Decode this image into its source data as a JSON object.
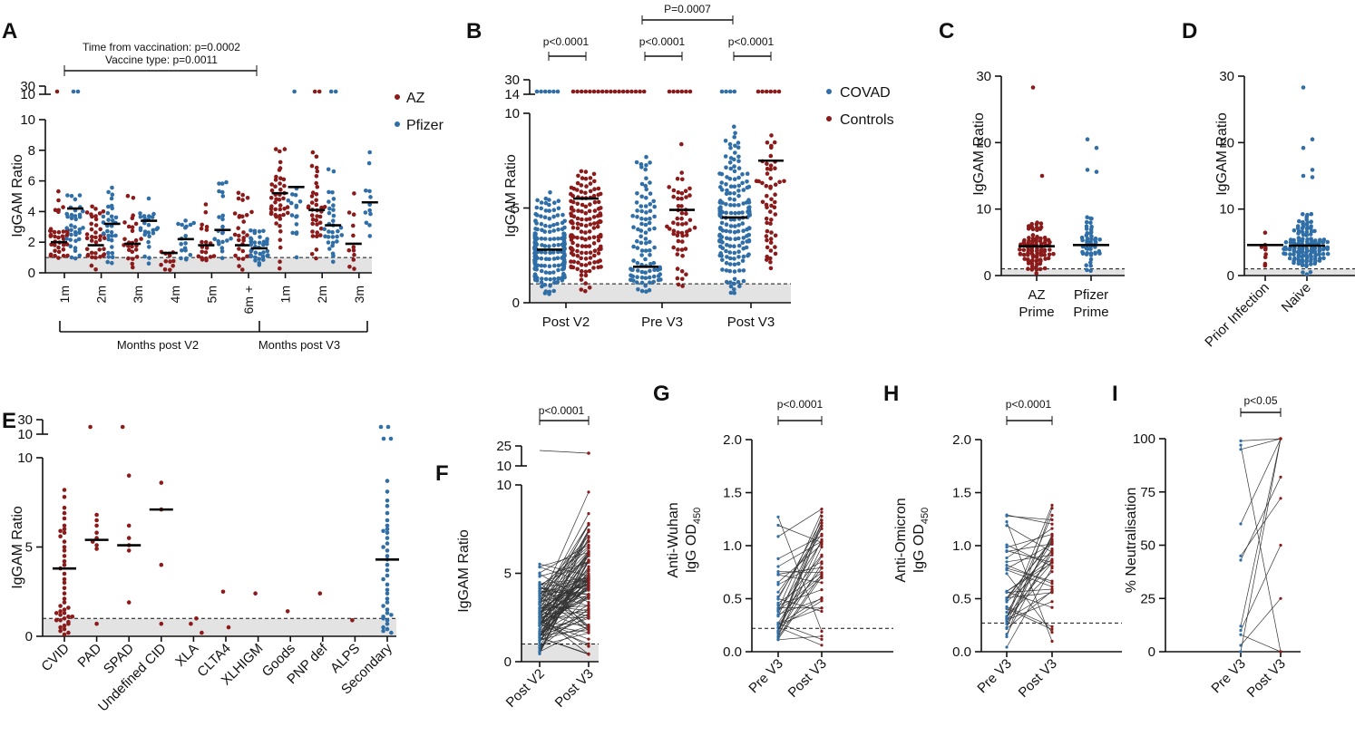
{
  "colors": {
    "az": "#8b1a1a",
    "pfizer": "#2f6ea6",
    "covad": "#2f6ea6",
    "controls": "#8b1a1a",
    "shade": "#e3e3e3",
    "axis": "#111111"
  },
  "chart_data": [
    {
      "panel": "A",
      "type": "scatter",
      "ylabel": "IgGAM Ratio",
      "yticks": [
        "0",
        "2",
        "4",
        "6",
        "8",
        "10"
      ],
      "ybreak_ticks": [
        "10",
        "30"
      ],
      "ylim": [
        0,
        10
      ],
      "cutoff": 1.0,
      "categories": [
        "1m",
        "2m",
        "3m",
        "4m",
        "5m",
        "6m +",
        "1m",
        "2m",
        "3m"
      ],
      "group_labels": [
        "Months post V2",
        "Months post V3"
      ],
      "legend": [
        "AZ",
        "Pfizer"
      ],
      "annotation": [
        "Time from vaccination: p=0.0002",
        "Vaccine type: p=0.0011"
      ],
      "series": [
        {
          "name": "AZ",
          "medians": [
            2.0,
            1.8,
            1.9,
            1.3,
            1.8,
            1.8,
            5.2,
            4.1,
            1.9
          ],
          "n": [
            40,
            38,
            26,
            12,
            20,
            30,
            46,
            38,
            12
          ],
          "max": [
            5.5,
            4.9,
            5.3,
            1.6,
            5.0,
            8.0,
            9.2,
            8.5,
            5.8
          ],
          "break_points": [
            1,
            0,
            0,
            0,
            0,
            0,
            0,
            2,
            0
          ]
        },
        {
          "name": "Pfizer",
          "medians": [
            4.2,
            3.2,
            3.4,
            2.2,
            2.8,
            1.6,
            5.6,
            3.1,
            4.6
          ],
          "n": [
            36,
            32,
            26,
            18,
            22,
            36,
            16,
            32,
            12
          ],
          "max": [
            5.6,
            6.3,
            5.5,
            4.3,
            6.9,
            3.3,
            6.0,
            7.7,
            8.2
          ],
          "break_points": [
            2,
            0,
            0,
            0,
            0,
            0,
            1,
            2,
            0
          ]
        }
      ]
    },
    {
      "panel": "B",
      "type": "scatter",
      "ylabel": "IgGAM Ratio",
      "yticks": [
        "0",
        "5",
        "10"
      ],
      "ybreak_ticks": [
        "14",
        "30"
      ],
      "ylim": [
        0,
        10
      ],
      "cutoff": 1.0,
      "categories": [
        "Post V2",
        "Pre V3",
        "Post V3"
      ],
      "legend": [
        "COVAD",
        "Controls"
      ],
      "pvalues": [
        {
          "label": "p<0.0001",
          "between": "COVAD vs Controls, Post V2"
        },
        {
          "label": "p<0.0001",
          "between": "COVAD vs Controls, Pre V3"
        },
        {
          "label": "p<0.0001",
          "between": "COVAD vs Controls, Post V3"
        },
        {
          "label": "P=0.0007",
          "between": "Controls Pre V3 vs COVAD Post V3"
        }
      ],
      "series": [
        {
          "name": "COVAD",
          "medians": [
            2.8,
            1.9,
            4.5
          ],
          "n": [
            190,
            95,
            175
          ],
          "max": [
            6.3,
            8.0,
            9.6
          ],
          "break_points": [
            6,
            0,
            4
          ]
        },
        {
          "name": "Controls",
          "medians": [
            5.5,
            4.9,
            7.5
          ],
          "n": [
            150,
            55,
            55
          ],
          "max": [
            7.5,
            8.6,
            9.8
          ],
          "break_points": [
            18,
            6,
            6
          ]
        }
      ]
    },
    {
      "panel": "C",
      "type": "scatter",
      "ylabel": "IgGAM Ratio",
      "yticks": [
        "0",
        "10",
        "20",
        "30"
      ],
      "ylim": [
        0,
        30
      ],
      "cutoff": 1.0,
      "categories": [
        "AZ Prime",
        "Pfizer Prime"
      ],
      "category_lines": [
        [
          "AZ",
          "Prime"
        ],
        [
          "Pfizer",
          "Prime"
        ]
      ],
      "series": [
        {
          "name": "AZ Prime",
          "median": 4.4,
          "n": 95,
          "max": 28.3,
          "outliers": [
            28.3,
            15.0
          ]
        },
        {
          "name": "Pfizer Prime",
          "median": 4.6,
          "n": 55,
          "max": 20.5,
          "outliers": [
            20.5,
            19.2,
            15.9,
            15.6
          ]
        }
      ]
    },
    {
      "panel": "D",
      "type": "scatter",
      "ylabel": "IgGAM Ratio",
      "yticks": [
        "0",
        "10",
        "20",
        "30"
      ],
      "ylim": [
        0,
        30
      ],
      "cutoff": 1.0,
      "categories": [
        "Prior Infection",
        "Naive"
      ],
      "series": [
        {
          "name": "Prior Infection",
          "median": 4.6,
          "n": 9,
          "max": 6.5,
          "outliers": []
        },
        {
          "name": "Naive",
          "median": 4.5,
          "n": 140,
          "max": 28.3,
          "outliers": [
            28.3,
            20.5,
            19.2,
            15.9,
            15.0,
            14.8
          ]
        }
      ]
    },
    {
      "panel": "E",
      "type": "scatter",
      "ylabel": "IgGAM Ratio",
      "yticks": [
        "0",
        "5",
        "10"
      ],
      "ybreak_ticks": [
        "10",
        "30"
      ],
      "ylim": [
        0,
        10
      ],
      "cutoff": 1.0,
      "categories": [
        "CVID",
        "PAD",
        "SPAD",
        "Undefined CID",
        "XLA",
        "CLTA4",
        "XLHIGM",
        "Goods",
        "PNP def",
        "ALPS",
        "Secondary"
      ],
      "series": [
        {
          "name": "IgGAM Ratio",
          "medians": [
            3.8,
            5.4,
            5.1,
            7.1,
            null,
            null,
            null,
            null,
            null,
            null,
            4.3
          ],
          "values": [
            [
              8.2,
              7.8,
              7.2,
              6.9,
              6.6,
              6.2,
              6.0,
              5.9,
              5.8,
              5.6,
              5.3,
              5.0,
              4.8,
              4.5,
              4.2,
              4.0,
              3.8,
              3.5,
              3.2,
              3.0,
              2.7,
              2.4,
              2.1,
              1.9,
              1.7,
              1.5,
              1.4,
              1.3,
              1.2,
              1.1,
              1.0,
              0.9,
              0.8,
              0.6,
              0.5,
              0.4,
              0.3,
              0.2,
              0.1,
              1.6,
              1.3,
              1.1,
              0.9,
              0.7
            ],
            [
              6.8,
              6.5,
              6.2,
              5.8,
              5.5,
              5.3,
              5.1,
              4.9,
              0.7
            ],
            [
              9.0,
              6.2,
              5.5,
              5.1,
              4.8,
              1.9
            ],
            [
              8.6,
              7.1,
              4.0,
              0.7
            ],
            [
              0.7,
              1.0,
              0.2
            ],
            [
              2.5,
              0.5
            ],
            [
              2.4
            ],
            [
              1.4
            ],
            [
              2.4
            ],
            [
              0.9
            ],
            [
              8.7,
              8.1,
              7.6,
              7.3,
              6.9,
              6.5,
              6.2,
              6.0,
              5.9,
              5.8,
              5.5,
              5.2,
              5.0,
              4.8,
              4.5,
              4.3,
              4.0,
              3.7,
              3.4,
              3.2,
              2.9,
              2.6,
              2.4,
              2.1,
              1.9,
              1.7,
              1.5,
              1.3,
              1.1,
              0.9,
              0.7,
              0.5,
              0.4,
              0.3,
              0.2,
              1.0,
              1.2
            ]
          ],
          "break_points": [
            0,
            1,
            1,
            0,
            0,
            0,
            0,
            0,
            0,
            0,
            4
          ]
        }
      ]
    },
    {
      "panel": "F",
      "type": "line",
      "ylabel": "IgGAM Ratio",
      "yticks": [
        "0",
        "5",
        "10"
      ],
      "ybreak_ticks": [
        "10",
        "25"
      ],
      "ylim": [
        0,
        10
      ],
      "cutoff": 1.0,
      "categories": [
        "Post V2",
        "Post V3"
      ],
      "pvalue": "p<0.0001",
      "n_pairs": 110
    },
    {
      "panel": "G",
      "type": "line",
      "ylabel": "Anti-Wuhan IgG OD450",
      "ylabel_lines": [
        "Anti-Wuhan",
        "IgG OD",
        "450"
      ],
      "yticks": [
        "0.0",
        "0.5",
        "1.0",
        "1.5",
        "2.0"
      ],
      "ylim": [
        0,
        2.0
      ],
      "cutoff": 0.22,
      "categories": [
        "Pre V3",
        "Post V3"
      ],
      "pvalue": "p<0.0001",
      "n_pairs": 40
    },
    {
      "panel": "H",
      "type": "line",
      "ylabel": "Anti-Omicron IgG OD450",
      "ylabel_lines": [
        "Anti-Omicron",
        "IgG OD",
        "450"
      ],
      "yticks": [
        "0.0",
        "0.5",
        "1.0",
        "1.5",
        "2.0"
      ],
      "ylim": [
        0,
        2.0
      ],
      "cutoff": 0.27,
      "categories": [
        "Pre V3",
        "Post V3"
      ],
      "pvalue": "p<0.0001",
      "n_pairs": 40
    },
    {
      "panel": "I",
      "type": "line",
      "ylabel": "% Neutralisation",
      "yticks": [
        "0",
        "25",
        "50",
        "75",
        "100"
      ],
      "ylim": [
        0,
        100
      ],
      "categories": [
        "Pre V3",
        "Post V3"
      ],
      "pvalue": "p<0.05",
      "pairs": [
        [
          99,
          100
        ],
        [
          97,
          0
        ],
        [
          95,
          100
        ],
        [
          60,
          100
        ],
        [
          45,
          72
        ],
        [
          43,
          82
        ],
        [
          12,
          100
        ],
        [
          10,
          50
        ],
        [
          8,
          0
        ],
        [
          3,
          25
        ],
        [
          0,
          0
        ],
        [
          0,
          100
        ]
      ]
    }
  ]
}
